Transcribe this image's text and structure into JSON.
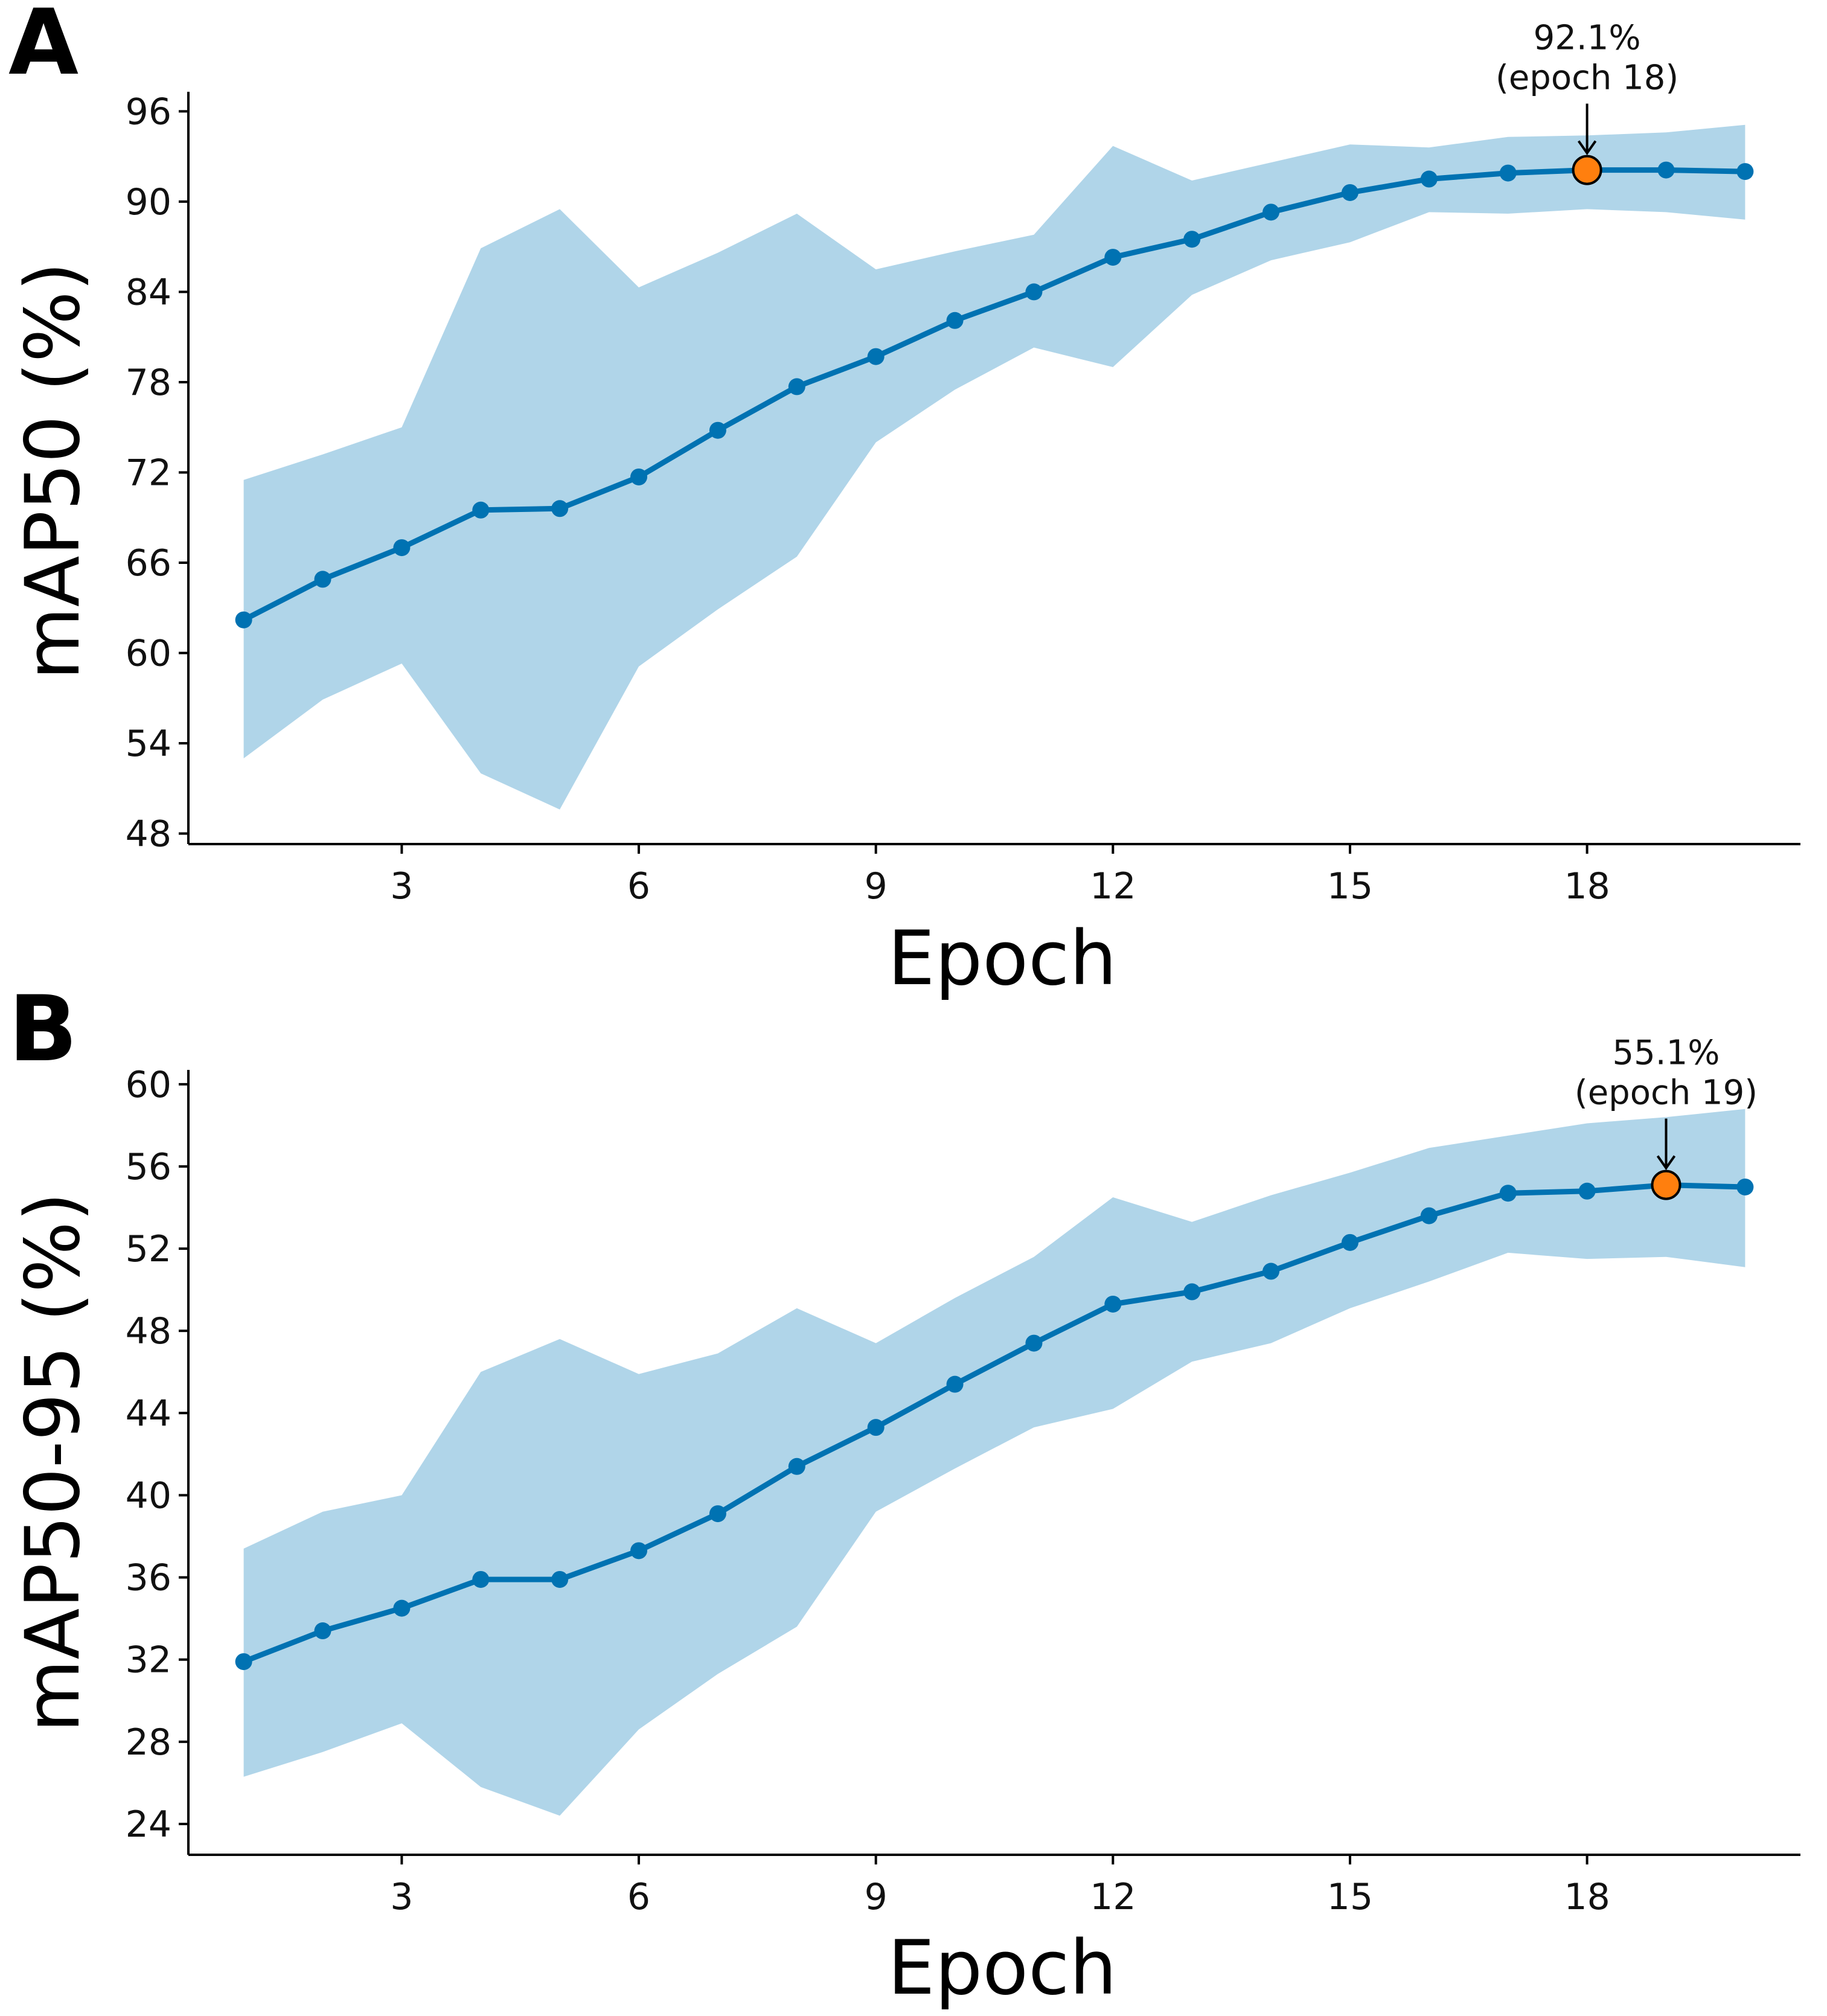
{
  "chart_data": [
    {
      "panel": "A",
      "type": "line",
      "xlabel": "Epoch",
      "ylabel": "mAP50 (%)",
      "xlim": [
        0.3,
        20.7
      ],
      "ylim": [
        47.3,
        97.3
      ],
      "xticks": [
        3,
        6,
        9,
        12,
        15,
        18
      ],
      "yticks": [
        48,
        54,
        60,
        66,
        72,
        78,
        84,
        90,
        96
      ],
      "x": [
        1,
        2,
        3,
        4,
        5,
        6,
        7,
        8,
        9,
        10,
        11,
        12,
        13,
        14,
        15,
        16,
        17,
        18,
        19,
        20
      ],
      "series": [
        {
          "name": "mean",
          "values": [
            62.2,
            64.9,
            67.0,
            69.5,
            69.6,
            71.7,
            74.8,
            77.7,
            79.7,
            82.1,
            84.0,
            86.3,
            87.5,
            89.3,
            90.6,
            91.5,
            91.9,
            92.1,
            92.1,
            92.0
          ]
        },
        {
          "name": "upper",
          "values": [
            71.5,
            73.2,
            75.0,
            86.9,
            89.5,
            84.3,
            86.6,
            89.2,
            85.5,
            86.7,
            87.8,
            93.7,
            91.4,
            92.6,
            93.8,
            93.6,
            94.3,
            94.4,
            94.6,
            95.1
          ]
        },
        {
          "name": "lower",
          "values": [
            53.0,
            56.9,
            59.3,
            52.0,
            49.6,
            59.1,
            62.9,
            66.4,
            74.0,
            77.5,
            80.3,
            79.0,
            83.8,
            86.1,
            87.3,
            89.3,
            89.2,
            89.5,
            89.3,
            88.8
          ]
        }
      ],
      "best": {
        "x": 18,
        "y": 92.1
      },
      "annotation": {
        "line1": "92.1%",
        "line2": "(epoch 18)"
      },
      "colors": {
        "line": "#0072b2",
        "band": "#b0d5e9",
        "best": "#ff7f0e"
      }
    },
    {
      "panel": "B",
      "type": "line",
      "xlabel": "Epoch",
      "ylabel": "mAP50-95 (%)",
      "xlim": [
        0.3,
        20.7
      ],
      "ylim": [
        22.5,
        60.7
      ],
      "xticks": [
        3,
        6,
        9,
        12,
        15,
        18
      ],
      "yticks": [
        24,
        28,
        32,
        36,
        40,
        44,
        48,
        52,
        56,
        60
      ],
      "x": [
        1,
        2,
        3,
        4,
        5,
        6,
        7,
        8,
        9,
        10,
        11,
        12,
        13,
        14,
        15,
        16,
        17,
        18,
        19,
        20
      ],
      "series": [
        {
          "name": "mean",
          "values": [
            31.9,
            33.4,
            34.5,
            35.9,
            35.9,
            37.3,
            39.1,
            41.4,
            43.3,
            45.4,
            47.4,
            49.3,
            49.9,
            50.9,
            52.3,
            53.6,
            54.7,
            54.8,
            55.1,
            55.0
          ]
        },
        {
          "name": "upper",
          "values": [
            37.4,
            39.2,
            40.0,
            46.0,
            47.6,
            45.9,
            46.9,
            49.1,
            47.4,
            49.6,
            51.6,
            54.5,
            53.3,
            54.6,
            55.7,
            56.9,
            57.5,
            58.1,
            58.4,
            58.8
          ]
        },
        {
          "name": "lower",
          "values": [
            26.3,
            27.5,
            28.9,
            25.8,
            24.4,
            28.6,
            31.3,
            33.6,
            39.2,
            41.3,
            43.3,
            44.2,
            46.5,
            47.4,
            49.1,
            50.4,
            51.8,
            51.5,
            51.6,
            51.1
          ]
        }
      ],
      "best": {
        "x": 19,
        "y": 55.1
      },
      "annotation": {
        "line1": "55.1%",
        "line2": "(epoch 19)"
      },
      "colors": {
        "line": "#0072b2",
        "band": "#b0d5e9",
        "best": "#ff7f0e"
      }
    }
  ]
}
